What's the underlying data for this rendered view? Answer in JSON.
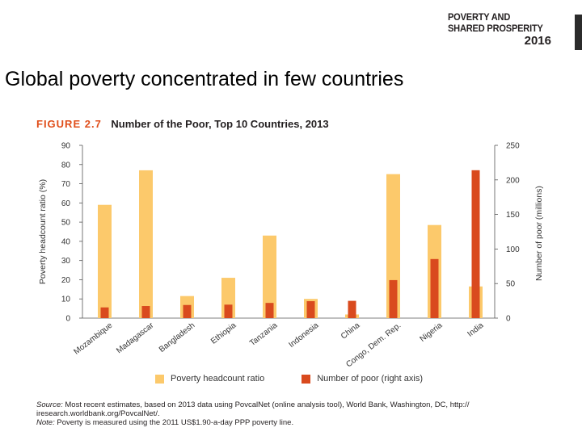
{
  "header": {
    "brand_line1": "POVERTY AND",
    "brand_line2": "SHARED PROSPERITY",
    "brand_year": "2016",
    "slide_title": "Global poverty concentrated in few countries"
  },
  "figure": {
    "number": "FIGURE 2.7",
    "title": "Number of the Poor, Top 10 Countries, 2013"
  },
  "colors": {
    "ratio": "#fcc96b",
    "poor": "#d94a1e",
    "accent": "#e04e1a"
  },
  "chart_data": {
    "type": "bar",
    "categories": [
      "Mozambique",
      "Madagascar",
      "Bangladesh",
      "Ethiopia",
      "Tanzania",
      "Indonesia",
      "China",
      "Congo, Dem. Rep.",
      "Nigeria",
      "India"
    ],
    "series": [
      {
        "name": "Poverty headcount ratio",
        "axis": "left",
        "values": [
          59,
          77,
          11.5,
          21,
          43,
          10,
          1.9,
          75,
          48.5,
          16.5
        ]
      },
      {
        "name": "Number of poor (right axis)",
        "axis": "right",
        "values": [
          15.5,
          17.5,
          19,
          19.5,
          22,
          24.5,
          25,
          55,
          85.5,
          214
        ]
      }
    ],
    "ylabel": "Poverty headcount ratio (%)",
    "y2label": "Number of poor (millions)",
    "ylim": [
      0,
      90
    ],
    "y2lim": [
      0,
      250
    ],
    "yticks": [
      0,
      10,
      20,
      30,
      40,
      50,
      60,
      70,
      80,
      90
    ],
    "y2ticks": [
      0,
      50,
      100,
      150,
      200,
      250
    ],
    "legend_position": "bottom",
    "grid": false
  },
  "footnote": {
    "source_label": "Source:",
    "source_text": " Most recent estimates, based on 2013 data using PovcalNet (online analysis tool), World Bank, Washington, DC, http:// iresearch.worldbank.org/PovcalNet/.",
    "note_label": "Note:",
    "note_text": " Poverty is measured using the 2011 US$1.90-a-day PPP poverty line."
  }
}
